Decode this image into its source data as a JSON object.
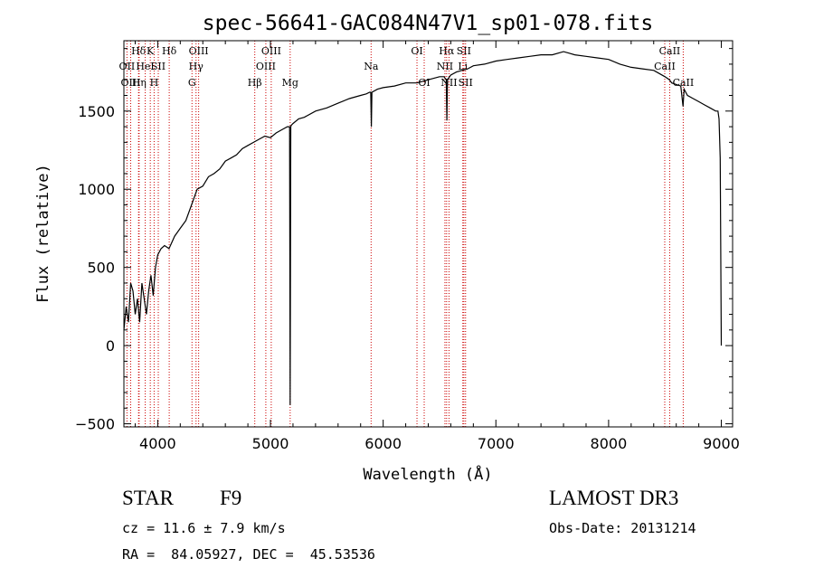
{
  "chart_data": {
    "type": "line",
    "title": "spec-56641-GAC084N47V1_sp01-078.fits",
    "xlabel": "Wavelength (Å)",
    "ylabel": "Flux (relative)",
    "xlim": [
      3700,
      9100
    ],
    "ylim": [
      -520,
      1950
    ],
    "xticks": [
      4000,
      5000,
      6000,
      7000,
      8000,
      9000
    ],
    "yticks": [
      -500,
      0,
      500,
      1000,
      1500
    ],
    "series": [
      {
        "name": "spectrum",
        "x": [
          3700,
          3720,
          3740,
          3760,
          3780,
          3800,
          3820,
          3840,
          3860,
          3880,
          3900,
          3920,
          3940,
          3960,
          3980,
          4000,
          4030,
          4060,
          4100,
          4150,
          4200,
          4250,
          4300,
          4350,
          4400,
          4450,
          4500,
          4550,
          4600,
          4650,
          4700,
          4750,
          4800,
          4850,
          4900,
          4950,
          5000,
          5050,
          5100,
          5150,
          5170,
          5175,
          5180,
          5185,
          5200,
          5250,
          5300,
          5400,
          5500,
          5600,
          5700,
          5800,
          5850,
          5880,
          5890,
          5895,
          5900,
          5950,
          6000,
          6100,
          6200,
          6300,
          6400,
          6500,
          6540,
          6560,
          6565,
          6570,
          6600,
          6650,
          6700,
          6750,
          6800,
          6900,
          7000,
          7100,
          7200,
          7300,
          7400,
          7500,
          7600,
          7650,
          7700,
          7800,
          7900,
          8000,
          8100,
          8200,
          8300,
          8400,
          8450,
          8500,
          8540,
          8560,
          8600,
          8640,
          8660,
          8670,
          8700,
          8750,
          8800,
          8850,
          8900,
          8950,
          8970,
          8980,
          8990,
          9000
        ],
        "y": [
          100,
          250,
          150,
          400,
          350,
          200,
          300,
          150,
          400,
          300,
          200,
          350,
          450,
          320,
          500,
          580,
          620,
          640,
          620,
          700,
          750,
          800,
          900,
          1000,
          1020,
          1080,
          1100,
          1130,
          1180,
          1200,
          1220,
          1260,
          1280,
          1300,
          1320,
          1340,
          1330,
          1360,
          1380,
          1400,
          1400,
          -380,
          1400,
          1410,
          1420,
          1450,
          1460,
          1500,
          1520,
          1550,
          1580,
          1600,
          1610,
          1620,
          1620,
          1400,
          1620,
          1640,
          1650,
          1660,
          1680,
          1680,
          1700,
          1720,
          1720,
          1700,
          1440,
          1700,
          1730,
          1750,
          1760,
          1770,
          1790,
          1800,
          1820,
          1830,
          1840,
          1850,
          1860,
          1860,
          1880,
          1870,
          1860,
          1850,
          1840,
          1830,
          1800,
          1780,
          1770,
          1760,
          1740,
          1720,
          1700,
          1680,
          1670,
          1660,
          1530,
          1640,
          1600,
          1580,
          1560,
          1540,
          1520,
          1500,
          1500,
          1450,
          1200,
          0
        ]
      }
    ],
    "line_markers": [
      {
        "label": "Hδ",
        "x": 3830,
        "row": 1
      },
      {
        "label": "OII",
        "x": 3727,
        "row": 2
      },
      {
        "label": "OIII",
        "x": 3760,
        "row": 3
      },
      {
        "label": "K",
        "x": 3934,
        "row": 1
      },
      {
        "label": "HeI",
        "x": 3889,
        "row": 2
      },
      {
        "label": "Hη",
        "x": 3835,
        "row": 3
      },
      {
        "label": "SII",
        "x": 4005,
        "row": 2
      },
      {
        "label": "H",
        "x": 3968,
        "row": 3
      },
      {
        "label": "Hδ",
        "x": 4102,
        "row": 1
      },
      {
        "label": "OIII",
        "x": 4363,
        "row": 1
      },
      {
        "label": "Hγ",
        "x": 4340,
        "row": 2
      },
      {
        "label": "G",
        "x": 4304,
        "row": 3
      },
      {
        "label": "Hβ",
        "x": 4861,
        "row": 3
      },
      {
        "label": "OIII",
        "x": 5007,
        "row": 1
      },
      {
        "label": "OIII",
        "x": 4959,
        "row": 2
      },
      {
        "label": "Mg",
        "x": 5175,
        "row": 3
      },
      {
        "label": "Na",
        "x": 5893,
        "row": 2
      },
      {
        "label": "OI",
        "x": 6300,
        "row": 1
      },
      {
        "label": "OI",
        "x": 6364,
        "row": 3
      },
      {
        "label": "Hα",
        "x": 6563,
        "row": 1
      },
      {
        "label": "SII",
        "x": 6716,
        "row": 1
      },
      {
        "label": "NII",
        "x": 6548,
        "row": 2
      },
      {
        "label": "Li",
        "x": 6707,
        "row": 2
      },
      {
        "label": "NII",
        "x": 6584,
        "row": 3
      },
      {
        "label": "SII",
        "x": 6731,
        "row": 3
      },
      {
        "label": "CaII",
        "x": 8542,
        "row": 1
      },
      {
        "label": "CaII",
        "x": 8498,
        "row": 2
      },
      {
        "label": "CaII",
        "x": 8662,
        "row": 3
      }
    ]
  },
  "info": {
    "class_label": "STAR",
    "subclass": "F9",
    "survey": "LAMOST DR3",
    "redshift": "cz = 11.6 ± 7.9 km/s",
    "obs_date": "Obs-Date: 20131214",
    "coords": "RA =  84.05927, DEC =  45.53536"
  },
  "colors": {
    "spectrum": "#000000",
    "marker": "#cc0000"
  }
}
